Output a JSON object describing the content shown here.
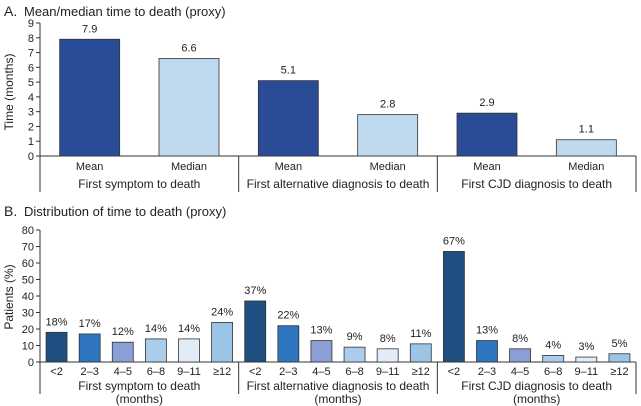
{
  "chart_data": [
    {
      "type": "bar",
      "panel_label": "A.",
      "title": "Mean/median time to death (proxy)",
      "ylabel": "Time (months)",
      "ylim": [
        0,
        9
      ],
      "yticks": [
        "0",
        "1",
        "2",
        "3",
        "4",
        "5",
        "6",
        "7",
        "8",
        "9"
      ],
      "groups": [
        {
          "label": "First symptom to death",
          "bars": [
            {
              "category": "Mean",
              "value": 7.9,
              "value_label": "7.9"
            },
            {
              "category": "Median",
              "value": 6.6,
              "value_label": "6.6"
            }
          ]
        },
        {
          "label": "First alternative diagnosis to death",
          "bars": [
            {
              "category": "Mean",
              "value": 5.1,
              "value_label": "5.1"
            },
            {
              "category": "Median",
              "value": 2.8,
              "value_label": "2.8"
            }
          ]
        },
        {
          "label": "First CJD diagnosis to death",
          "bars": [
            {
              "category": "Mean",
              "value": 2.9,
              "value_label": "2.9"
            },
            {
              "category": "Median",
              "value": 1.1,
              "value_label": "1.1"
            }
          ]
        }
      ],
      "colors": {
        "Mean": "#2a4c97",
        "Median": "#bfd9ef"
      }
    },
    {
      "type": "bar",
      "panel_label": "B.",
      "title": "Distribution of time to death (proxy)",
      "ylabel": "Patients (%)",
      "ylim": [
        0,
        80
      ],
      "yticks": [
        "0",
        "10",
        "20",
        "30",
        "40",
        "50",
        "60",
        "70",
        "80"
      ],
      "categories": [
        "<2",
        "2–3",
        "4–5",
        "6–8",
        "9–11",
        "≥12"
      ],
      "category_colors": [
        "#1f4f80",
        "#2e74bf",
        "#8b9fd6",
        "#a9cdea",
        "#e2ecf8",
        "#9cc4e6"
      ],
      "groups": [
        {
          "label": "First symptom to death",
          "sublabel": "(months)",
          "values": [
            18,
            17,
            12,
            14,
            14,
            24
          ],
          "value_labels": [
            "18%",
            "17%",
            "12%",
            "14%",
            "14%",
            "24%"
          ]
        },
        {
          "label": "First alternative diagnosis to death",
          "sublabel": "(months)",
          "values": [
            37,
            22,
            13,
            9,
            8,
            11
          ],
          "value_labels": [
            "37%",
            "22%",
            "13%",
            "9%",
            "8%",
            "11%"
          ]
        },
        {
          "label": "First CJD diagnosis to death",
          "sublabel": "(months)",
          "values": [
            67,
            13,
            8,
            4,
            3,
            5
          ],
          "value_labels": [
            "67%",
            "13%",
            "8%",
            "4%",
            "3%",
            "5%"
          ]
        }
      ]
    }
  ]
}
